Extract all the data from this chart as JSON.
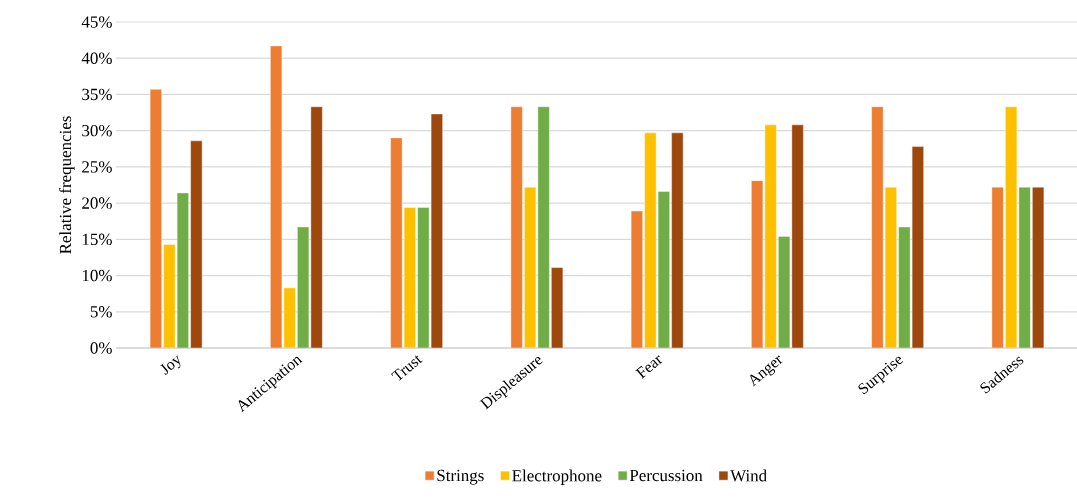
{
  "chart_data": {
    "type": "bar",
    "ylabel": "Relative frequencies",
    "categories": [
      "Joy",
      "Anticipation",
      "Trust",
      "Displeasure",
      "Fear",
      "Anger",
      "Surprise",
      "Sadness"
    ],
    "series": [
      {
        "name": "Strings",
        "color": "#ed7d31",
        "values": [
          35.7,
          41.7,
          29.0,
          33.3,
          18.9,
          23.1,
          33.3,
          22.2
        ]
      },
      {
        "name": "Electrophone",
        "color": "#ffc000",
        "values": [
          14.3,
          8.3,
          19.4,
          22.2,
          29.7,
          30.8,
          22.2,
          33.3
        ]
      },
      {
        "name": "Percussion",
        "color": "#70ad47",
        "values": [
          21.4,
          16.7,
          19.4,
          33.3,
          21.6,
          15.4,
          16.7,
          22.2
        ]
      },
      {
        "name": "Wind",
        "color": "#9e480e",
        "values": [
          28.6,
          33.3,
          32.3,
          11.1,
          29.7,
          30.8,
          27.8,
          22.2
        ]
      }
    ],
    "ylim": [
      0,
      45
    ],
    "yticks": [
      {
        "value": 0,
        "label": "0%"
      },
      {
        "value": 5,
        "label": "5%"
      },
      {
        "value": 10,
        "label": "10%"
      },
      {
        "value": 15,
        "label": "15%"
      },
      {
        "value": 20,
        "label": "20%"
      },
      {
        "value": 25,
        "label": "25%"
      },
      {
        "value": 30,
        "label": "30%"
      },
      {
        "value": 35,
        "label": "35%"
      },
      {
        "value": 40,
        "label": "40%"
      },
      {
        "value": 45,
        "label": "45%"
      }
    ],
    "grid": "y",
    "legend": "bottom"
  }
}
